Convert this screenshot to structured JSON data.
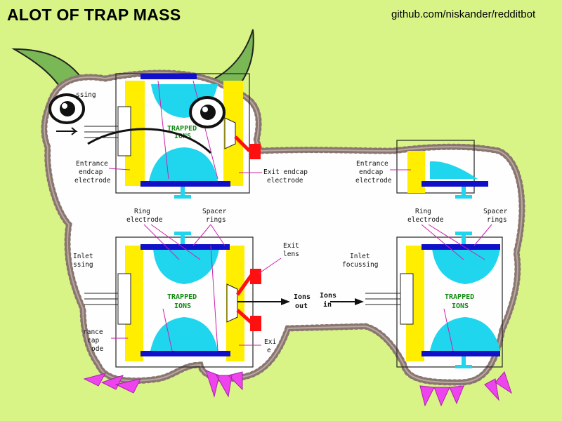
{
  "header": {
    "title": "ALOT OF TRAP MASS",
    "credit": "github.com/niskander/redditbot"
  },
  "labels": {
    "top_left_inlet": "ssing",
    "trapped_ions_top": "TRAPPED",
    "trapped_ions_top_2": "IONS",
    "entrance_1": "Entrance",
    "entrance_2": "endcap",
    "entrance_3": "electrode",
    "exit_1": "Exit endcap",
    "exit_2": "electrode",
    "right_entrance_1": "Entrance",
    "right_entrance_2": "endcap",
    "right_entrance_3": "electrode",
    "ring_1": "Ring",
    "ring_2": "electrode",
    "spacer_1": "Spacer",
    "spacer_2": "rings",
    "right_ring_1": "Ring",
    "right_ring_2": "electrode",
    "right_spacer_1": "Spacer",
    "right_spacer_2": "rings",
    "exit_lens_1": "Exit",
    "exit_lens_2": "lens",
    "inlet_left_1": "Inlet",
    "inlet_left_2": "ssing",
    "trapped_ions_bl": "TRAPPED",
    "trapped_ions_bl_2": "IONS",
    "ions_out_1": "Ions",
    "ions_out_2": "out",
    "ions_in_1": "Ions",
    "ions_in_2": "in",
    "inlet_right_1": "Inlet",
    "inlet_right_2": "focussing",
    "trapped_ions_br": "TRAPPED",
    "trapped_ions_br_2": "IONS",
    "entrance_bl_1": "rance",
    "entrance_bl_2": "cap",
    "entrance_bl_3": "ode",
    "exit_bl_1": "Exi",
    "exit_bl_2": "e"
  },
  "colors": {
    "background": "#d8f486",
    "yellow_electrode": "#ffee00",
    "cyan_ions": "#1fd6ee",
    "blue_ring": "#1010c8",
    "red_lens": "#ff1010",
    "magenta_hoof": "#ee44ee",
    "horn_green": "#79b855",
    "fleece_outline": "#8a7670"
  },
  "icons": [
    "horn",
    "eye",
    "hoof",
    "arrow"
  ]
}
